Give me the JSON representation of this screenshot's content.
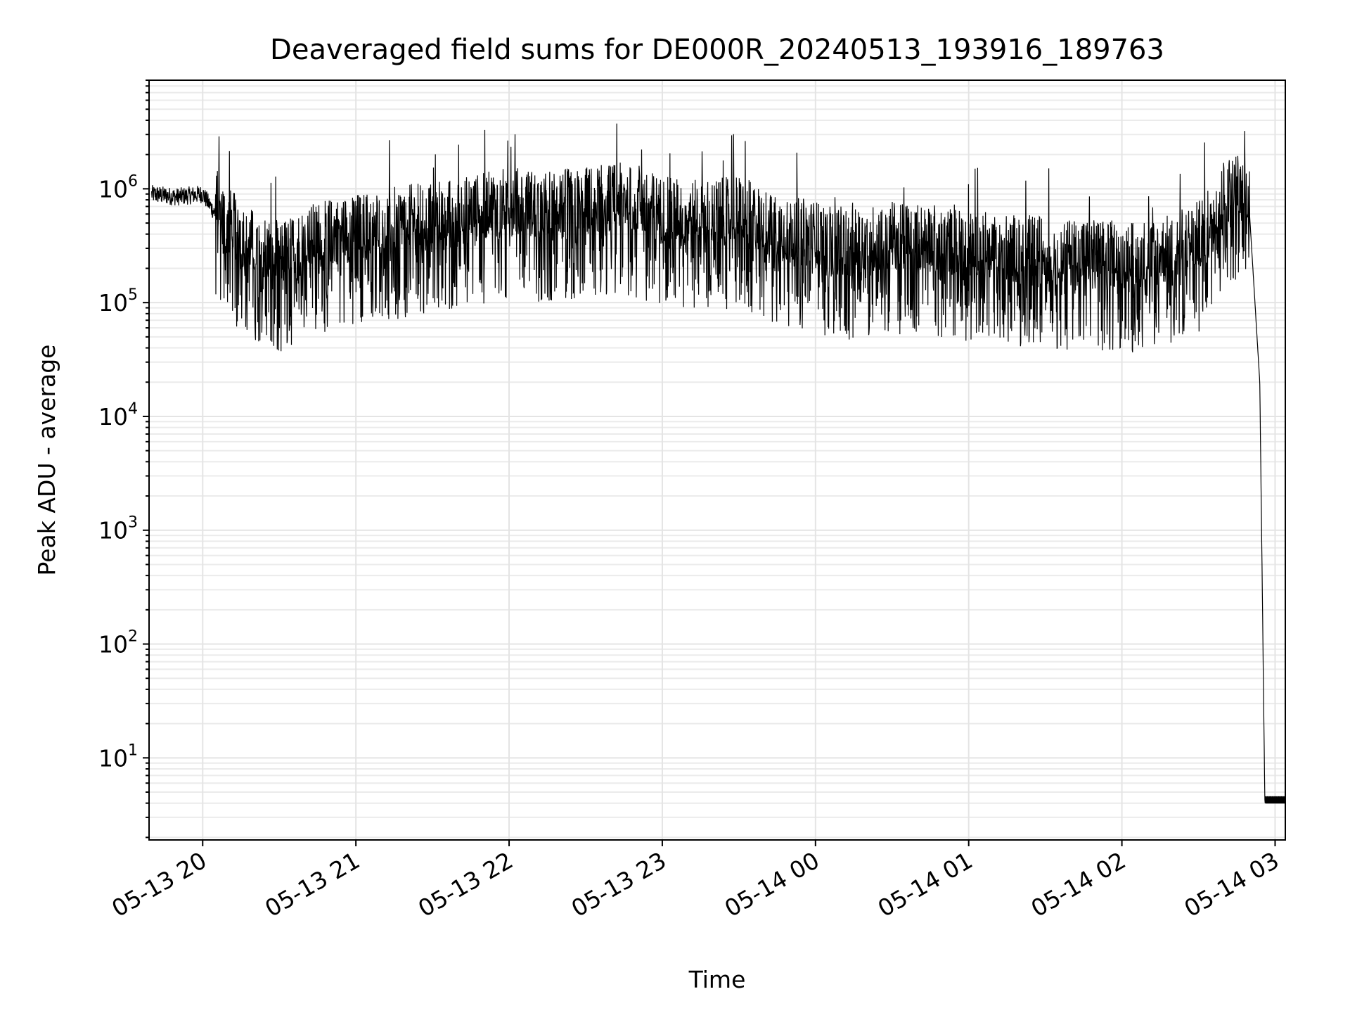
{
  "chart_data": {
    "type": "line",
    "title": "Deaveraged field sums for DE000R_20240513_193916_189763",
    "xlabel": "Time",
    "ylabel": "Peak ADU - average",
    "yscale": "log",
    "ylim": [
      1.9,
      9000000
    ],
    "xlim": [
      "2024-05-13 19:39",
      "2024-05-14 03:04"
    ],
    "x_ticks": [
      "05-13 20",
      "05-13 21",
      "05-13 22",
      "05-13 23",
      "05-14 00",
      "05-14 01",
      "05-14 02",
      "05-14 03"
    ],
    "y_ticks": [
      {
        "base": "10",
        "exp": "1"
      },
      {
        "base": "10",
        "exp": "2"
      },
      {
        "base": "10",
        "exp": "3"
      },
      {
        "base": "10",
        "exp": "4"
      },
      {
        "base": "10",
        "exp": "5"
      },
      {
        "base": "10",
        "exp": "6"
      }
    ],
    "grid": "on",
    "line_color": "#000000",
    "series": [
      {
        "x": [
          "2024-05-13 19:40",
          "2024-05-13 19:50",
          "2024-05-13 20:00",
          "2024-05-13 20:10",
          "2024-05-13 20:20",
          "2024-05-13 20:30",
          "2024-05-13 20:45",
          "2024-05-13 21:00",
          "2024-05-13 21:15",
          "2024-05-13 21:30",
          "2024-05-13 21:45",
          "2024-05-13 22:00",
          "2024-05-13 22:15",
          "2024-05-13 22:30",
          "2024-05-13 22:45",
          "2024-05-13 23:00",
          "2024-05-13 23:15",
          "2024-05-13 23:30",
          "2024-05-13 23:45",
          "2024-05-14 00:00",
          "2024-05-14 00:15",
          "2024-05-14 00:30",
          "2024-05-14 00:45",
          "2024-05-14 01:00",
          "2024-05-14 01:15",
          "2024-05-14 01:30",
          "2024-05-14 01:45",
          "2024-05-14 02:00",
          "2024-05-14 02:15",
          "2024-05-14 02:30",
          "2024-05-14 02:40",
          "2024-05-14 02:45",
          "2024-05-14 02:50",
          "2024-05-14 02:54",
          "2024-05-14 02:56",
          "2024-05-14 03:04"
        ],
        "values": [
          900000,
          850000,
          900000,
          400000,
          250000,
          200000,
          300000,
          350000,
          400000,
          450000,
          500000,
          600000,
          550000,
          600000,
          650000,
          500000,
          450000,
          500000,
          350000,
          300000,
          250000,
          300000,
          280000,
          250000,
          230000,
          220000,
          210000,
          200000,
          210000,
          300000,
          700000,
          800000,
          600000,
          20000,
          4,
          4
        ]
      }
    ]
  }
}
